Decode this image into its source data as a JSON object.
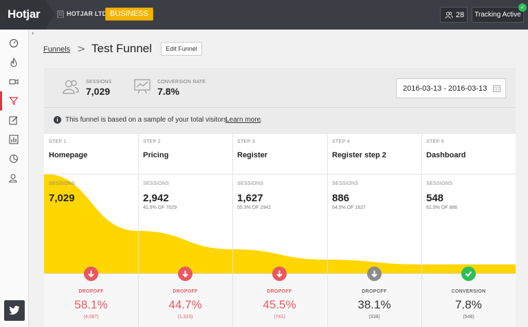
{
  "topbar": {
    "logo": "Hotjar",
    "org_name": "HOTJAR LTD",
    "plan": "BUSINESS",
    "users_count": "28",
    "tracking": "Tracking Active"
  },
  "breadcrumb": {
    "parent": "Funnels",
    "separator": ">",
    "title": "Test Funnel",
    "edit_label": "Edit Funnel"
  },
  "summary": {
    "sessions_label": "SESSIONS",
    "sessions_value": "7,029",
    "conversion_label": "CONVERSION RATE",
    "conversion_value": "7.8%",
    "date_range": "2016-03-13 - 2016-03-13"
  },
  "info": {
    "text": "This funnel is based on a sample of your total visitors.",
    "link": "Learn more",
    "dot": "."
  },
  "steps": [
    {
      "step": "STEP 1",
      "name": "Homepage",
      "sessions_label": "SESSIONS",
      "sessions": "7,029",
      "sub": "",
      "outcome": "DROPOFF",
      "rate": "58.1%",
      "count": "(4,087)",
      "kind": "drop"
    },
    {
      "step": "STEP 2",
      "name": "Pricing",
      "sessions_label": "SESSIONS",
      "sessions": "2,942",
      "sub": "41.9% OF 7029",
      "outcome": "DROPOFF",
      "rate": "44.7%",
      "count": "(1,315)",
      "kind": "drop"
    },
    {
      "step": "STEP 3",
      "name": "Register",
      "sessions_label": "SESSIONS",
      "sessions": "1,627",
      "sub": "55.3% OF 2942",
      "outcome": "DROPOFF",
      "rate": "45.5%",
      "count": "(741)",
      "kind": "drop"
    },
    {
      "step": "STEP 4",
      "name": "Register step 2",
      "sessions_label": "SESSIONS",
      "sessions": "886",
      "sub": "54.5% OF 1627",
      "outcome": "DROPOFF",
      "rate": "38.1%",
      "count": "(338)",
      "kind": "neutral"
    },
    {
      "step": "STEP 5",
      "name": "Dashboard",
      "sessions_label": "SESSIONS",
      "sessions": "548",
      "sub": "61.9% OF 886",
      "outcome": "CONVERSION",
      "rate": "7.8%",
      "count": "(548)",
      "kind": "conversion"
    }
  ],
  "funnel_area": {
    "max_sessions": 7029,
    "values": [
      7029,
      2942,
      1627,
      886,
      548
    ]
  },
  "colors": {
    "topbar": "#3b3f45",
    "badge": "#f5b400",
    "funnel": "#ffd600",
    "drop": "#e8585e",
    "neutral": "#8c8c8c",
    "conversion": "#2ebd59",
    "active_nav": "#e3343f"
  },
  "icons": {
    "nav": [
      "dashboard-icon",
      "heatmap-icon",
      "recording-icon",
      "funnel-icon",
      "form-icon",
      "stats-icon",
      "poll-icon",
      "recruit-icon"
    ],
    "twitter": "twitter-icon"
  }
}
